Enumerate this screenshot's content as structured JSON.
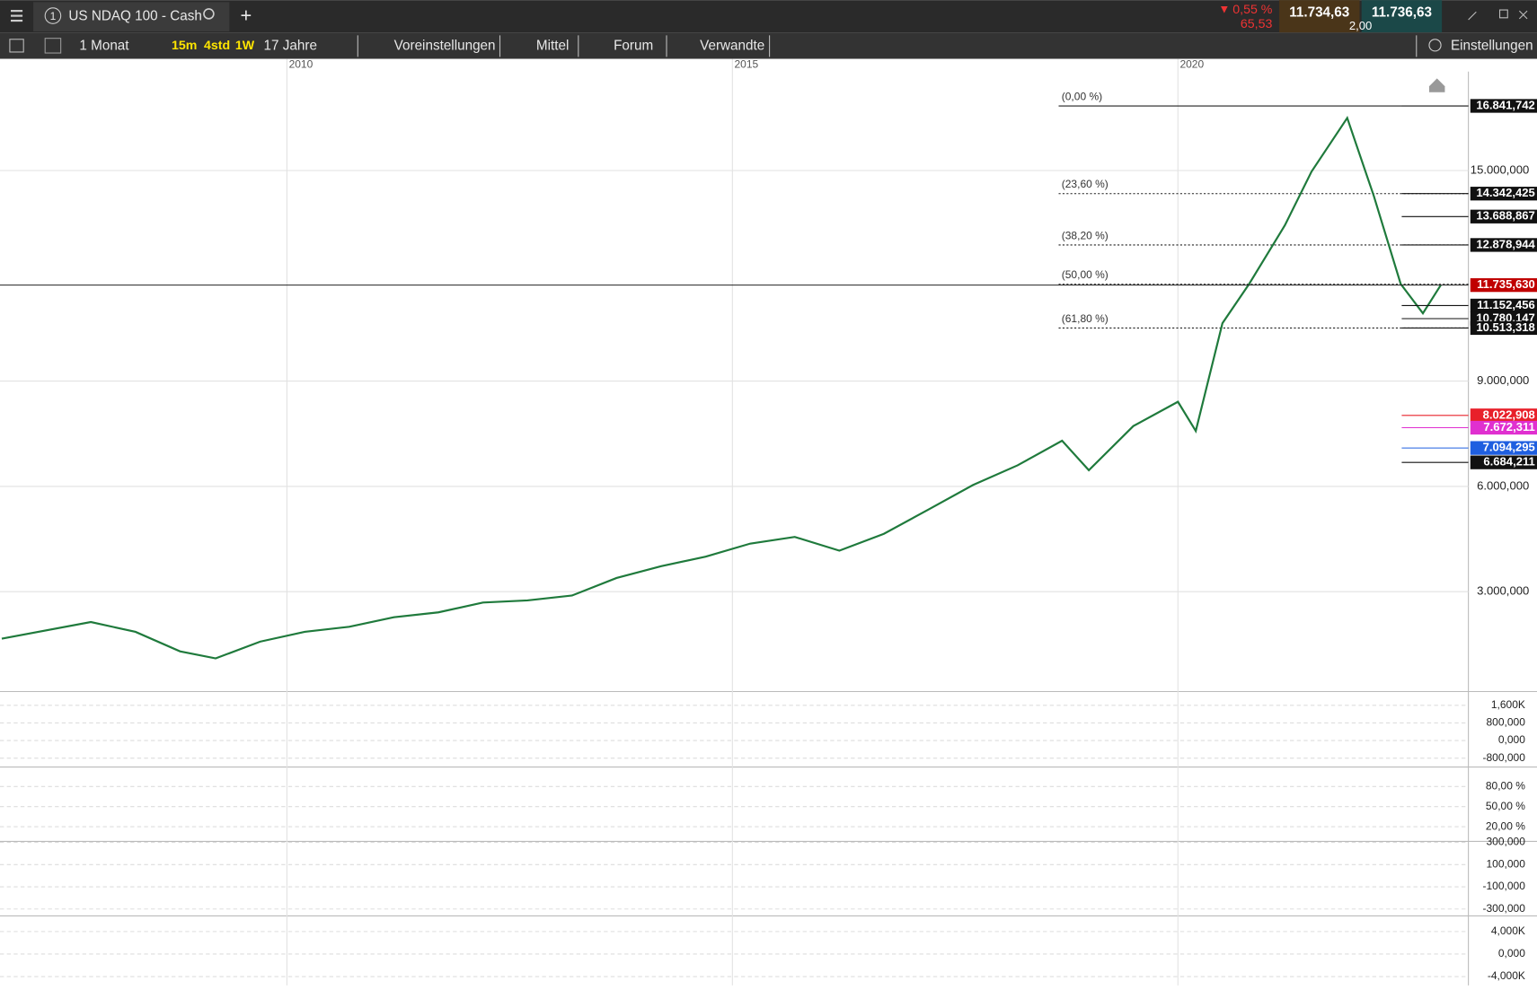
{
  "toolbar": {
    "menu_number": "1",
    "instrument": "US NDAQ 100 - Cash",
    "period": "1 Monat",
    "quick_15m": "15m",
    "quick_4std": "4std",
    "quick_1w": "1W",
    "range": "17 Jahre",
    "presets": "Voreinstellungen",
    "average": "Mittel",
    "forum": "Forum",
    "related": "Verwandte",
    "settings": "Einstellungen",
    "change_pct": "0,55 %",
    "change_abs": "65,53",
    "bid": "11.734,63",
    "ask": "11.736,63",
    "spread": "2,00"
  },
  "chart_data": {
    "type": "line",
    "color": "#1f7a3c",
    "x": [
      2006.8,
      2007.8,
      2008.3,
      2008.8,
      2009.2,
      2009.7,
      2010.2,
      2010.7,
      2011.2,
      2011.7,
      2012.2,
      2012.7,
      2013.2,
      2013.7,
      2014.2,
      2014.7,
      2015.2,
      2015.7,
      2016.2,
      2016.7,
      2017.2,
      2017.7,
      2018.2,
      2018.7,
      2019.0,
      2019.5,
      2020.0,
      2020.2,
      2020.5,
      2020.8,
      2021.2,
      2021.5,
      2021.9,
      2022.2,
      2022.5,
      2022.75,
      2022.95
    ],
    "values": [
      1660,
      2135,
      1856,
      1300,
      1100,
      1577,
      1856,
      2000,
      2270,
      2410,
      2690,
      2750,
      2890,
      3390,
      3725,
      4000,
      4370,
      4560,
      4170,
      4650,
      5340,
      6040,
      6600,
      7300,
      6460,
      7720,
      8410,
      7580,
      10650,
      11770,
      13440,
      14970,
      16500,
      14270,
      11770,
      10930,
      11735
    ],
    "xlim": [
      2006.78,
      2023.26
    ],
    "xticks": [
      2010,
      2015,
      2020
    ],
    "ylim": [
      181,
      17819
    ],
    "yticks": [
      {
        "value": 15000,
        "label": "15.000,000"
      },
      {
        "value": 9000,
        "label": "9.000,000"
      },
      {
        "value": 6000,
        "label": "6.000,000"
      },
      {
        "value": 3000,
        "label": "3.000,000"
      }
    ],
    "grid": true,
    "fib_levels": [
      {
        "label": "(0,00 %)",
        "value": 16841
      },
      {
        "label": "(23,60 %)",
        "value": 14342
      },
      {
        "label": "(38,20 %)",
        "value": 12879
      },
      {
        "label": "(50,00 %)",
        "value": 11762
      },
      {
        "label": "(61,80 %)",
        "value": 10513
      }
    ],
    "last_price": {
      "value": 11735.63,
      "label": "11.735,630",
      "color": "#c00000"
    },
    "price_levels": [
      {
        "value": 16841.742,
        "label": "16.841,742",
        "color": "#111111"
      },
      {
        "value": 14342.425,
        "label": "14.342,425",
        "color": "#111111"
      },
      {
        "value": 13688.867,
        "label": "13.688,867",
        "color": "#111111"
      },
      {
        "value": 12878.944,
        "label": "12.878,944",
        "color": "#111111"
      },
      {
        "value": 11152.456,
        "label": "11.152,456",
        "color": "#111111"
      },
      {
        "value": 10780.147,
        "label": "10.780,147",
        "color": "#111111"
      },
      {
        "value": 10513.318,
        "label": "10.513,318",
        "color": "#111111"
      },
      {
        "value": 8022.908,
        "label": "8.022,908",
        "color": "#e8202a"
      },
      {
        "value": 7672.311,
        "label": "7.672,311",
        "color": "#e030d0"
      },
      {
        "value": 7094.295,
        "label": "7.094,295",
        "color": "#1f5fe0"
      },
      {
        "value": 6684.211,
        "label": "6.684,211",
        "color": "#111111"
      }
    ],
    "indicators": [
      {
        "ylim": [
          -1156,
          2133
        ],
        "yticks": [
          {
            "value": 1600,
            "label": "1,600K"
          },
          {
            "value": 800,
            "label": "800,000"
          },
          {
            "value": 0,
            "label": "0,000"
          },
          {
            "value": -800,
            "label": "-800,000"
          }
        ]
      },
      {
        "ylim": [
          -0.5,
          107.8
        ],
        "yticks": [
          {
            "value": 80,
            "label": "80,00 %"
          },
          {
            "value": 50,
            "label": "50,00 %"
          },
          {
            "value": 20,
            "label": "20,00 %"
          }
        ]
      },
      {
        "ylim": [
          -353,
          300
        ],
        "yticks": [
          {
            "value": 300,
            "label": "300,000"
          },
          {
            "value": 100,
            "label": "100,000"
          },
          {
            "value": -100,
            "label": "-100,000"
          },
          {
            "value": -300,
            "label": "-300,000"
          }
        ]
      },
      {
        "ylim": [
          -5565,
          6609
        ],
        "yticks": [
          {
            "value": 4000,
            "label": "4,000K"
          },
          {
            "value": 0,
            "label": "0,000"
          },
          {
            "value": -4000,
            "label": "-4,000K"
          }
        ]
      }
    ]
  }
}
